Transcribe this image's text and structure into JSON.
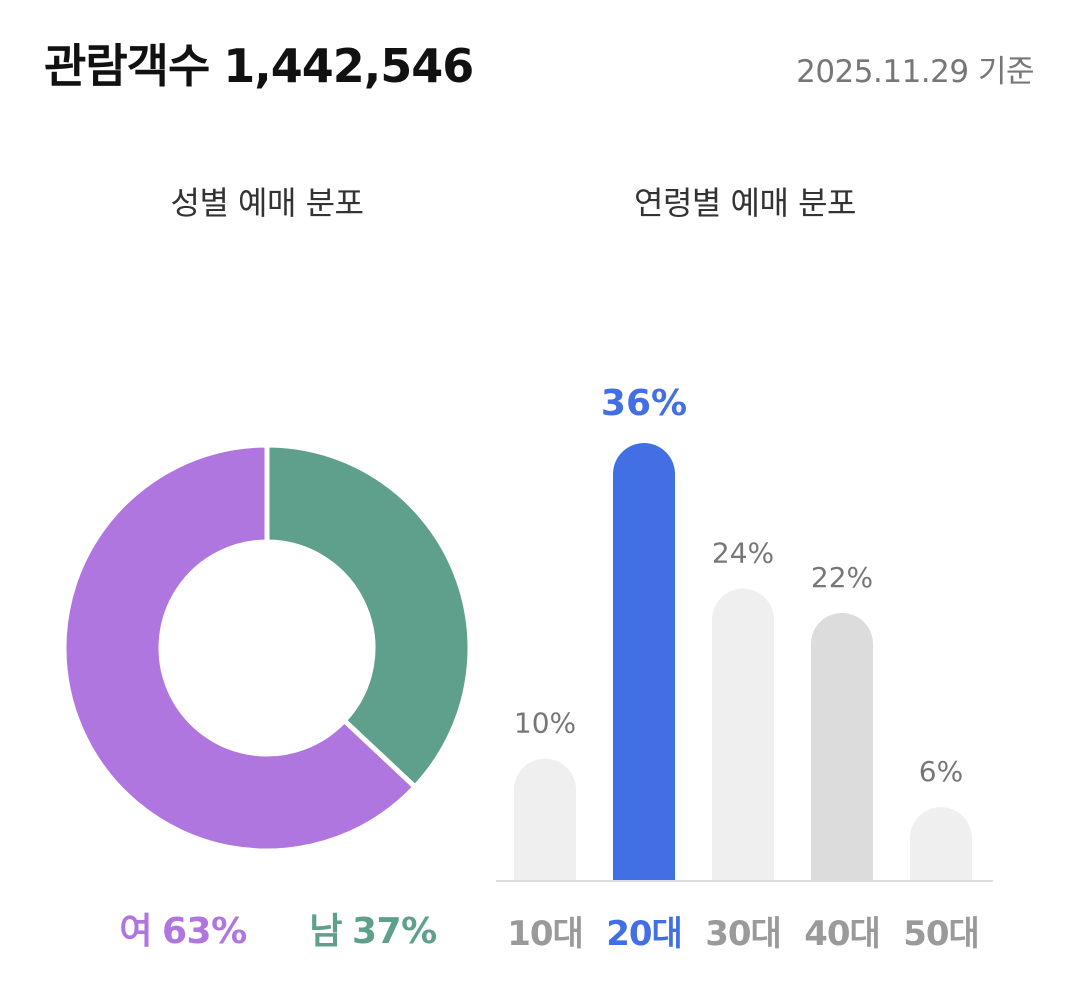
{
  "header": {
    "label": "관람객수",
    "count": "1,442,546",
    "date_note": "2025.11.29 기준"
  },
  "colors": {
    "female": "#b076df",
    "male": "#5ea08c",
    "highlight": "#4270e4",
    "bar_default": "#efefef",
    "bar_alt": "#dcdcdc",
    "label_gray": "#777777",
    "axis_gray": "#9a9a9a",
    "baseline": "#dddddd"
  },
  "chart_data": [
    {
      "type": "pie",
      "title": "성별 예매 분포",
      "donut": true,
      "slices": [
        {
          "label": "여",
          "value": 63,
          "display": "63%"
        },
        {
          "label": "남",
          "value": 37,
          "display": "37%"
        }
      ]
    },
    {
      "type": "bar",
      "title": "연령별 예매 분포",
      "categories": [
        "10대",
        "20대",
        "30대",
        "40대",
        "50대"
      ],
      "values": [
        10,
        36,
        24,
        22,
        6
      ],
      "value_labels": [
        "10%",
        "36%",
        "24%",
        "22%",
        "6%"
      ],
      "highlight_index": 1,
      "alt_index": 3,
      "ylim": [
        0,
        36
      ],
      "grid": false
    }
  ]
}
